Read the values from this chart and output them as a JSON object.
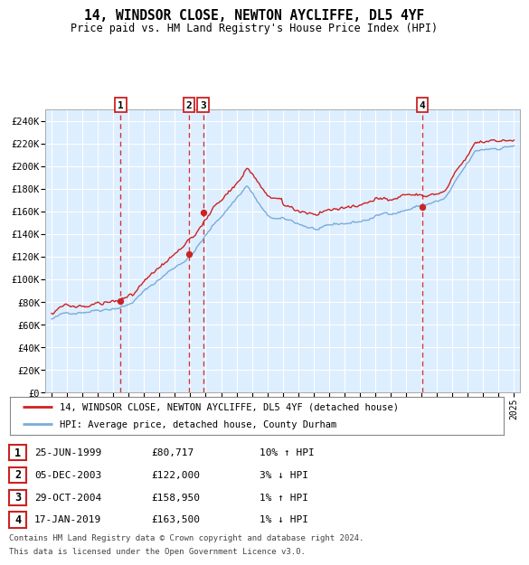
{
  "title": "14, WINDSOR CLOSE, NEWTON AYCLIFFE, DL5 4YF",
  "subtitle": "Price paid vs. HM Land Registry's House Price Index (HPI)",
  "legend_line1": "14, WINDSOR CLOSE, NEWTON AYCLIFFE, DL5 4YF (detached house)",
  "legend_line2": "HPI: Average price, detached house, County Durham",
  "footer_line1": "Contains HM Land Registry data © Crown copyright and database right 2024.",
  "footer_line2": "This data is licensed under the Open Government Licence v3.0.",
  "transactions": [
    {
      "num": 1,
      "date": "25-JUN-1999",
      "price": 80717,
      "price_str": "£80,717",
      "pct": "10%",
      "dir": "↑",
      "year": 1999.48
    },
    {
      "num": 2,
      "date": "05-DEC-2003",
      "price": 122000,
      "price_str": "£122,000",
      "pct": "3%",
      "dir": "↓",
      "year": 2003.92
    },
    {
      "num": 3,
      "date": "29-OCT-2004",
      "price": 158950,
      "price_str": "£158,950",
      "pct": "1%",
      "dir": "↑",
      "year": 2004.83
    },
    {
      "num": 4,
      "date": "17-JAN-2019",
      "price": 163500,
      "price_str": "£163,500",
      "pct": "1%",
      "dir": "↓",
      "year": 2019.04
    }
  ],
  "hpi_color": "#7aabdb",
  "price_color": "#cc2222",
  "vline_color": "#cc2222",
  "dot_color": "#cc2222",
  "plot_bg": "#ddeeff",
  "ylim": [
    0,
    250000
  ],
  "yticks": [
    0,
    20000,
    40000,
    60000,
    80000,
    100000,
    120000,
    140000,
    160000,
    180000,
    200000,
    220000,
    240000
  ],
  "xlim_left": 1994.6,
  "xlim_right": 2025.4,
  "xtick_years": [
    1995,
    1996,
    1997,
    1998,
    1999,
    2000,
    2001,
    2002,
    2003,
    2004,
    2005,
    2006,
    2007,
    2008,
    2009,
    2010,
    2011,
    2012,
    2013,
    2014,
    2015,
    2016,
    2017,
    2018,
    2019,
    2020,
    2021,
    2022,
    2023,
    2024,
    2025
  ]
}
